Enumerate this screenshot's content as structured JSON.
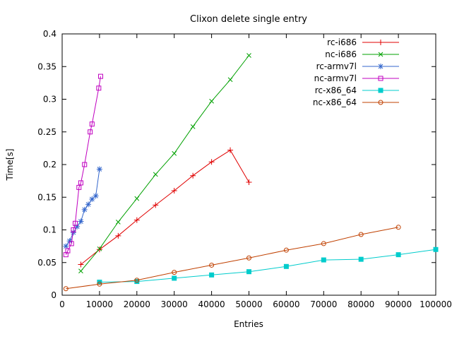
{
  "chart_data": {
    "type": "line",
    "title": "Clixon delete single entry",
    "xlabel": "Entries",
    "ylabel": "Time[s]",
    "xlim": [
      0,
      100000
    ],
    "ylim": [
      0,
      0.4
    ],
    "grid": false,
    "legend_position": "top-right-inside",
    "xticks": {
      "values": [
        0,
        10000,
        20000,
        30000,
        40000,
        50000,
        60000,
        70000,
        80000,
        90000,
        100000
      ],
      "labels": [
        "0",
        "10000",
        "20000",
        "30000",
        "40000",
        "50000",
        "60000",
        "70000",
        "80000",
        "90000",
        "100000"
      ]
    },
    "yticks": {
      "values": [
        0,
        0.05,
        0.1,
        0.15,
        0.2,
        0.25,
        0.3,
        0.35,
        0.4
      ],
      "labels": [
        "0",
        "0.05",
        "0.1",
        "0.15",
        "0.2",
        "0.25",
        "0.3",
        "0.35",
        "0.4"
      ]
    },
    "series": [
      {
        "name": "rc-i686",
        "color": "#e00000",
        "marker": "plus",
        "points": [
          [
            5000,
            0.047
          ],
          [
            10000,
            0.07
          ],
          [
            15000,
            0.091
          ],
          [
            20000,
            0.115
          ],
          [
            25000,
            0.138
          ],
          [
            30000,
            0.16
          ],
          [
            35000,
            0.183
          ],
          [
            40000,
            0.204
          ],
          [
            45000,
            0.222
          ],
          [
            50000,
            0.173
          ]
        ]
      },
      {
        "name": "nc-i686",
        "color": "#00a000",
        "marker": "cross",
        "points": [
          [
            5000,
            0.037
          ],
          [
            10000,
            0.071
          ],
          [
            15000,
            0.112
          ],
          [
            20000,
            0.148
          ],
          [
            25000,
            0.185
          ],
          [
            30000,
            0.217
          ],
          [
            35000,
            0.258
          ],
          [
            40000,
            0.297
          ],
          [
            45000,
            0.33
          ],
          [
            50000,
            0.367
          ]
        ]
      },
      {
        "name": "rc-armv7l",
        "color": "#3366cc",
        "marker": "asterisk",
        "points": [
          [
            1000,
            0.075
          ],
          [
            2000,
            0.083
          ],
          [
            3000,
            0.096
          ],
          [
            4000,
            0.105
          ],
          [
            5000,
            0.113
          ],
          [
            6000,
            0.131
          ],
          [
            7000,
            0.139
          ],
          [
            8000,
            0.147
          ],
          [
            9000,
            0.152
          ],
          [
            10000,
            0.193
          ]
        ]
      },
      {
        "name": "nc-armv7l",
        "color": "#c000c0",
        "marker": "square-open",
        "points": [
          [
            1000,
            0.062
          ],
          [
            1500,
            0.068
          ],
          [
            2500,
            0.079
          ],
          [
            3000,
            0.1
          ],
          [
            3500,
            0.11
          ],
          [
            4500,
            0.165
          ],
          [
            5000,
            0.172
          ],
          [
            6000,
            0.2
          ],
          [
            7500,
            0.25
          ],
          [
            8000,
            0.262
          ],
          [
            9800,
            0.317
          ],
          [
            10300,
            0.335
          ]
        ]
      },
      {
        "name": "rc-x86_64",
        "color": "#00cccc",
        "marker": "square-filled",
        "points": [
          [
            10000,
            0.02
          ],
          [
            20000,
            0.021
          ],
          [
            30000,
            0.026
          ],
          [
            40000,
            0.031
          ],
          [
            50000,
            0.036
          ],
          [
            60000,
            0.044
          ],
          [
            70000,
            0.054
          ],
          [
            80000,
            0.055
          ],
          [
            90000,
            0.062
          ],
          [
            100000,
            0.07
          ]
        ]
      },
      {
        "name": "nc-x86_64",
        "color": "#c04000",
        "marker": "circle-open",
        "points": [
          [
            1000,
            0.01
          ],
          [
            10000,
            0.017
          ],
          [
            20000,
            0.023
          ],
          [
            30000,
            0.035
          ],
          [
            40000,
            0.046
          ],
          [
            50000,
            0.057
          ],
          [
            60000,
            0.069
          ],
          [
            70000,
            0.079
          ],
          [
            80000,
            0.093
          ],
          [
            90000,
            0.104
          ]
        ]
      }
    ]
  }
}
